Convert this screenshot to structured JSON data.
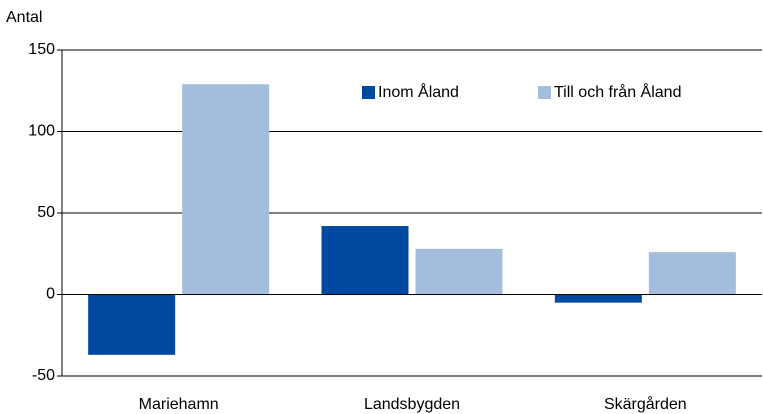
{
  "chart_data": {
    "type": "bar",
    "ylabel": "Antal",
    "categories": [
      "Mariehamn",
      "Landsbygden",
      "Skärgården"
    ],
    "series": [
      {
        "name": "Inom Åland",
        "color": "#0049a0",
        "values": [
          -37,
          42,
          -5
        ]
      },
      {
        "name": "Till och från Åland",
        "color": "#a3bedc",
        "values": [
          129,
          28,
          26
        ]
      }
    ],
    "ylim": [
      -50,
      150
    ],
    "yticks": [
      -50,
      0,
      50,
      100,
      150
    ],
    "grid": true,
    "legend": "top-right"
  }
}
